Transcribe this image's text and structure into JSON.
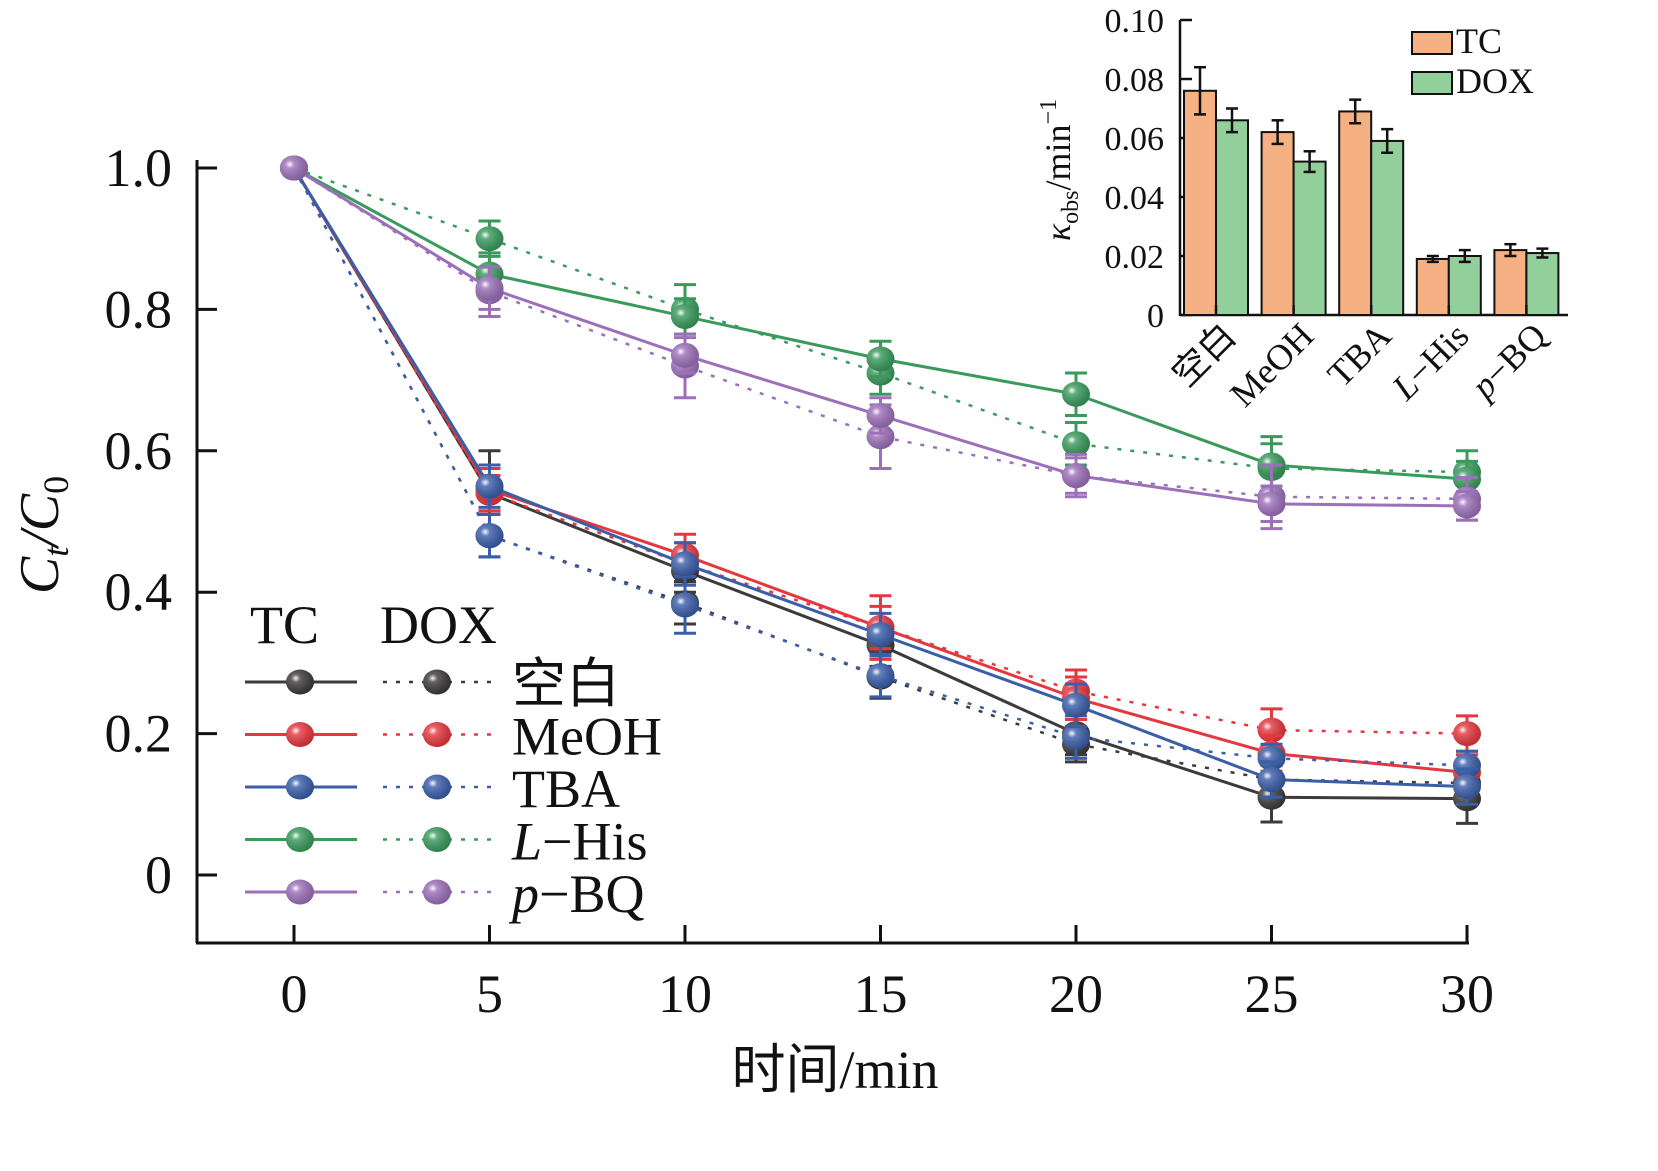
{
  "chart_data": [
    {
      "type": "line",
      "title": "",
      "xlabel": "时间/min",
      "ylabel_main": "C",
      "ylabel_sub_t": "t",
      "ylabel_mid": "/C",
      "ylabel_sub_0": "0",
      "xlim": [
        -2.5,
        30
      ],
      "ylim": [
        -0.1,
        1.0
      ],
      "x": [
        0,
        5,
        10,
        15,
        20,
        25,
        30
      ],
      "xticks": [
        "0",
        "5",
        "10",
        "15",
        "20",
        "25",
        "30"
      ],
      "yticks": [
        {
          "v": 0,
          "label": "0"
        },
        {
          "v": 0.2,
          "label": "0.2"
        },
        {
          "v": 0.4,
          "label": "0.4"
        },
        {
          "v": 0.6,
          "label": "0.6"
        },
        {
          "v": 0.8,
          "label": "0.8"
        },
        {
          "v": 1.0,
          "label": "1.0"
        }
      ],
      "legend": {
        "placement": "bottom-left",
        "col1": "TC",
        "col2": "DOX"
      },
      "series": [
        {
          "name": "空白",
          "color": "#3d3a3a",
          "tc": [
            1,
            0.54,
            0.43,
            0.325,
            0.2,
            0.11,
            0.108
          ],
          "tc_err": [
            0,
            0.06,
            0.03,
            0.03,
            0.03,
            0.035,
            0.035
          ],
          "dox": [
            1,
            0.48,
            0.385,
            0.28,
            0.185,
            0.135,
            0.13
          ],
          "dox_err": [
            0,
            0.03,
            0.03,
            0.03,
            0.025,
            0.02,
            0.02
          ]
        },
        {
          "name": "MeOH",
          "color": "#e3383f",
          "tc": [
            1,
            0.545,
            0.452,
            0.35,
            0.25,
            0.172,
            0.145
          ],
          "tc_err": [
            0,
            0.03,
            0.03,
            0.03,
            0.03,
            0.025,
            0.025
          ],
          "dox": [
            1,
            0.54,
            0.44,
            0.35,
            0.26,
            0.205,
            0.2
          ],
          "dox_err": [
            0,
            0.025,
            0.03,
            0.045,
            0.03,
            0.03,
            0.025
          ]
        },
        {
          "name": "TBA",
          "color": "#3b5ea9",
          "tc": [
            1,
            0.55,
            0.44,
            0.34,
            0.24,
            0.135,
            0.125
          ],
          "tc_err": [
            0,
            0.03,
            0.03,
            0.03,
            0.03,
            0.025,
            0.025
          ],
          "dox": [
            1,
            0.48,
            0.382,
            0.282,
            0.195,
            0.165,
            0.155
          ],
          "dox_err": [
            0,
            0.03,
            0.04,
            0.03,
            0.03,
            0.02,
            0.02
          ]
        },
        {
          "name": "L-His",
          "name_italic": "L",
          "name_rest": "−His",
          "color": "#3a9a5c",
          "tc": [
            1,
            0.85,
            0.79,
            0.73,
            0.68,
            0.58,
            0.56
          ],
          "tc_err": [
            0,
            0.03,
            0.025,
            0.025,
            0.03,
            0.03,
            0.025
          ],
          "dox": [
            1,
            0.9,
            0.8,
            0.71,
            0.61,
            0.575,
            0.57
          ],
          "dox_err": [
            0,
            0.025,
            0.035,
            0.03,
            0.03,
            0.045,
            0.03
          ]
        },
        {
          "name": "p-BQ",
          "name_italic": "p",
          "name_rest": "−BQ",
          "color": "#9b70b9",
          "tc": [
            1,
            0.83,
            0.735,
            0.65,
            0.565,
            0.525,
            0.522
          ],
          "tc_err": [
            0,
            0.03,
            0.025,
            0.025,
            0.025,
            0.025,
            0.02
          ],
          "dox": [
            1,
            0.825,
            0.72,
            0.62,
            0.565,
            0.535,
            0.532
          ],
          "dox_err": [
            0,
            0.035,
            0.045,
            0.045,
            0.03,
            0.045,
            0.03
          ]
        }
      ]
    },
    {
      "type": "bar",
      "title": "",
      "ylabel_main": "κ",
      "ylabel_sub": "obs",
      "ylabel_rest": "/min",
      "ylabel_sup": "−1",
      "ylim": [
        0,
        0.1
      ],
      "yticks": [
        {
          "v": 0,
          "label": "0"
        },
        {
          "v": 0.02,
          "label": "0.02"
        },
        {
          "v": 0.04,
          "label": "0.04"
        },
        {
          "v": 0.06,
          "label": "0.06"
        },
        {
          "v": 0.08,
          "label": "0.08"
        },
        {
          "v": 0.1,
          "label": "0.10"
        }
      ],
      "categories": [
        "空白",
        "MeOH",
        "TBA",
        "L-His",
        "p-BQ"
      ],
      "legend": {
        "placement": "top-right"
      },
      "series": [
        {
          "name": "TC",
          "color": "#f5b183",
          "values": [
            0.076,
            0.062,
            0.069,
            0.019,
            0.022
          ],
          "err": [
            0.008,
            0.004,
            0.004,
            0.001,
            0.002
          ]
        },
        {
          "name": "DOX",
          "color": "#92cf9b",
          "values": [
            0.066,
            0.052,
            0.059,
            0.02,
            0.021
          ],
          "err": [
            0.004,
            0.0035,
            0.004,
            0.002,
            0.0015
          ]
        }
      ]
    }
  ]
}
